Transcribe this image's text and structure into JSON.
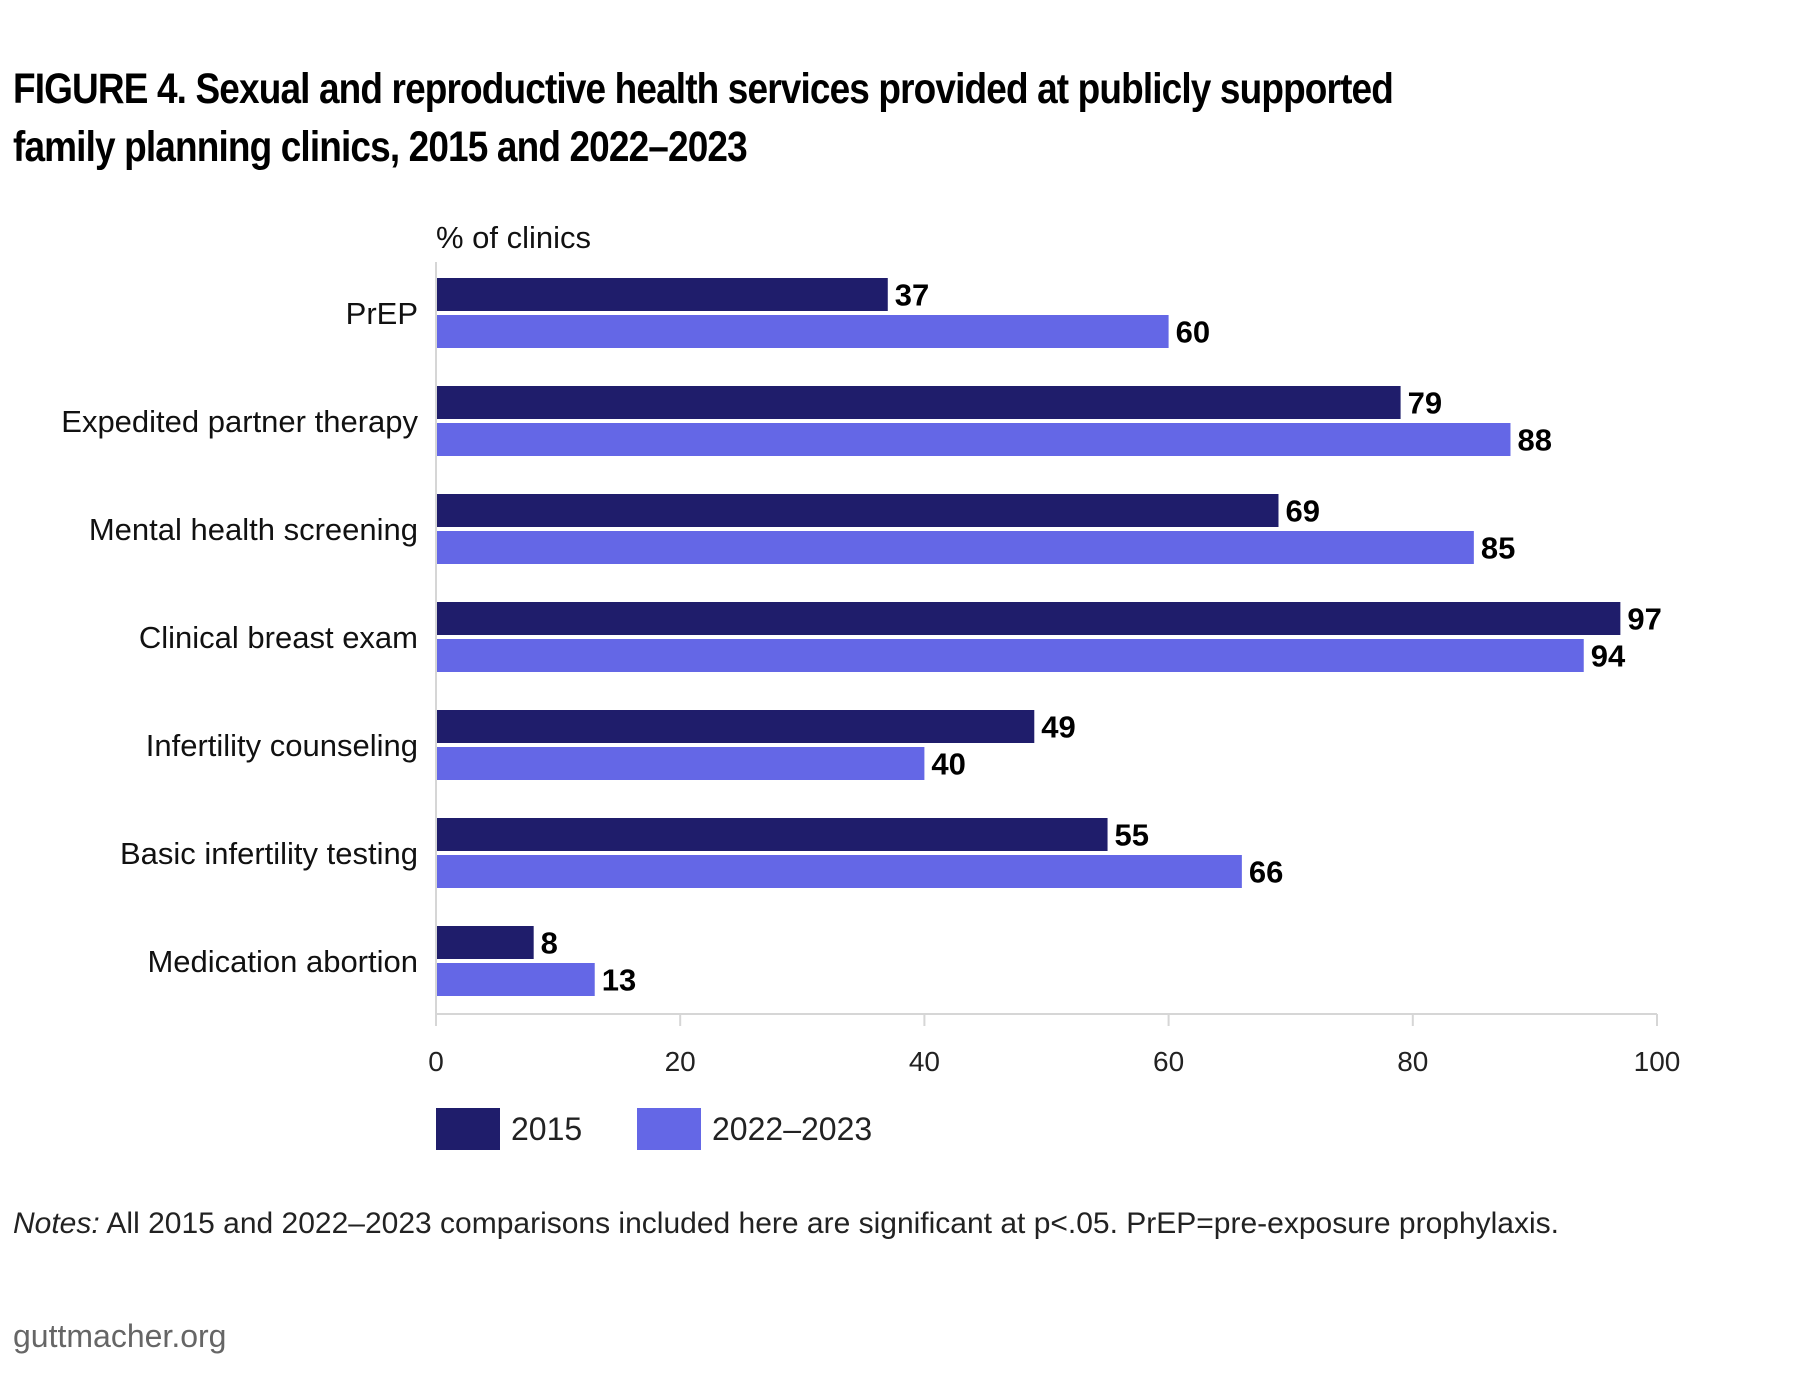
{
  "title": "FIGURE 4. Sexual and reproductive health services provided at publicly supported family planning clinics, 2015 and 2022–2023",
  "notes_label": "Notes:",
  "notes_text": " All 2015 and 2022–2023 comparisons included here are significant at p<.05. PrEP=pre-exposure prophylaxis.",
  "source": "guttmacher.org",
  "chart_data": {
    "type": "bar",
    "orientation": "horizontal",
    "unit_label": "% of clinics",
    "categories": [
      "PrEP",
      "Expedited partner therapy",
      "Mental health screening",
      "Clinical breast exam",
      "Infertility counseling",
      "Basic infertility testing",
      "Medication abortion"
    ],
    "series": [
      {
        "name": "2015",
        "color": "#1f1d6b",
        "values": [
          37,
          79,
          69,
          97,
          49,
          55,
          8
        ]
      },
      {
        "name": "2022–2023",
        "color": "#6467e6",
        "values": [
          60,
          88,
          85,
          94,
          40,
          66,
          13
        ]
      }
    ],
    "xlim": [
      0,
      100
    ],
    "xticks": [
      0,
      20,
      40,
      60,
      80,
      100
    ],
    "grid": false,
    "legend_position": "bottom-left"
  }
}
